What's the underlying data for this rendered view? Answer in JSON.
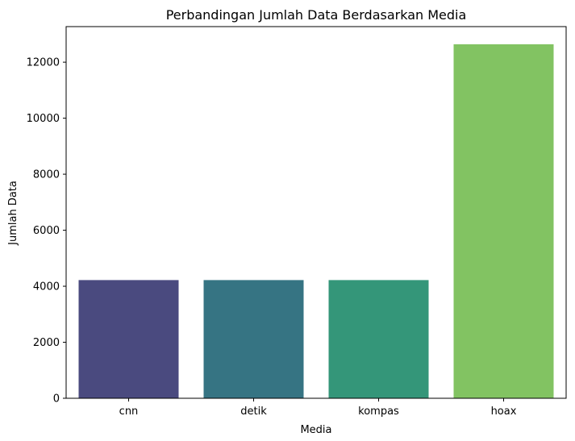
{
  "chart_data": {
    "type": "bar",
    "title": "Perbandingan Jumlah Data Berdasarkan Media",
    "xlabel": "Media",
    "ylabel": "Jumlah Data",
    "categories": [
      "cnn",
      "detik",
      "kompas",
      "hoax"
    ],
    "values": [
      4220,
      4220,
      4220,
      12640
    ],
    "colors": [
      "#4a4a7f",
      "#367483",
      "#349679",
      "#82c362"
    ],
    "ylim": [
      0,
      13270
    ],
    "yticks": [
      0,
      2000,
      4000,
      6000,
      8000,
      10000,
      12000
    ],
    "grid": false,
    "legend": "none"
  }
}
